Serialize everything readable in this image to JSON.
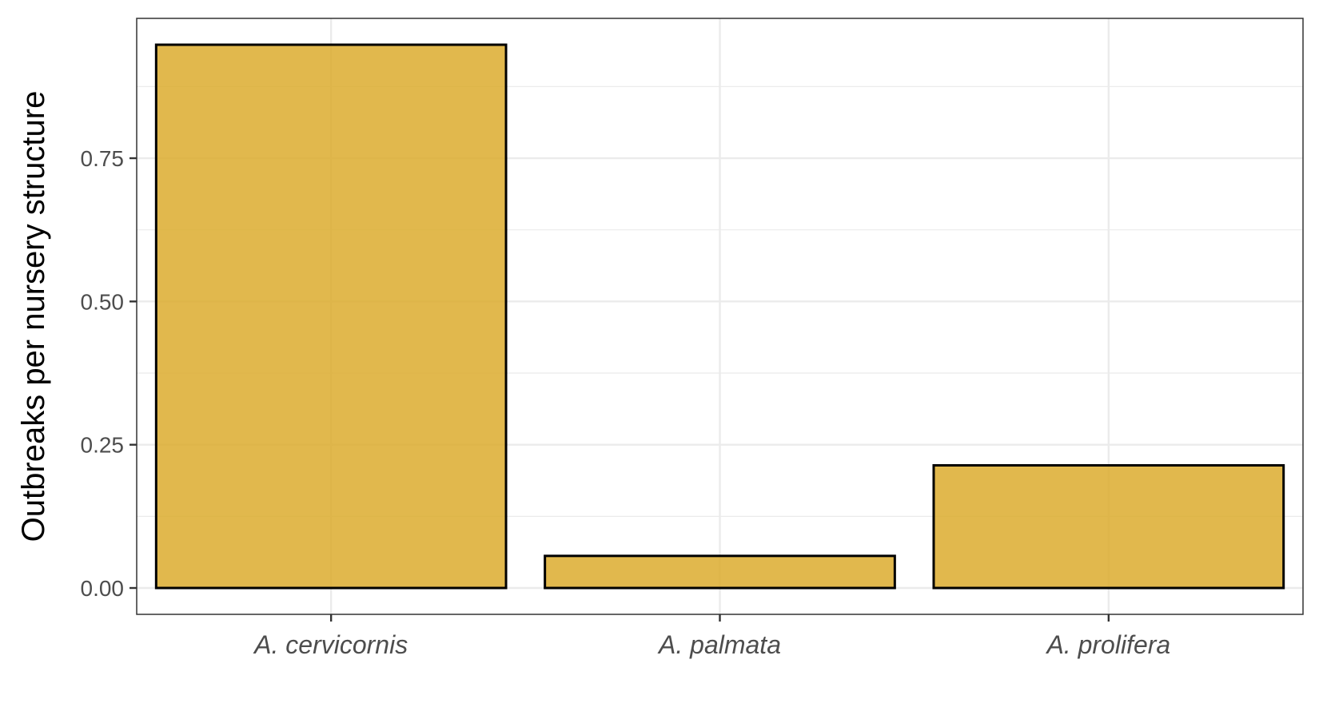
{
  "chart_data": {
    "type": "bar",
    "title": "",
    "xlabel": "",
    "ylabel": "Outbreaks per nursery structure",
    "categories": [
      "A. cervicornis",
      "A. palmata",
      "A. prolifera"
    ],
    "values": [
      0.948,
      0.056,
      0.214
    ],
    "ylim": [
      -0.046,
      0.994
    ],
    "yticks": [
      0.0,
      0.25,
      0.5,
      0.75
    ],
    "ytick_labels": [
      "0.00",
      "0.25",
      "0.50",
      "0.75"
    ],
    "grid": true,
    "bar_fill": "#dcac2e",
    "bar_fill_opacity": 0.85,
    "bar_stroke": "#000000",
    "panel_border": "#333333",
    "grid_color": "#ebebeb"
  }
}
